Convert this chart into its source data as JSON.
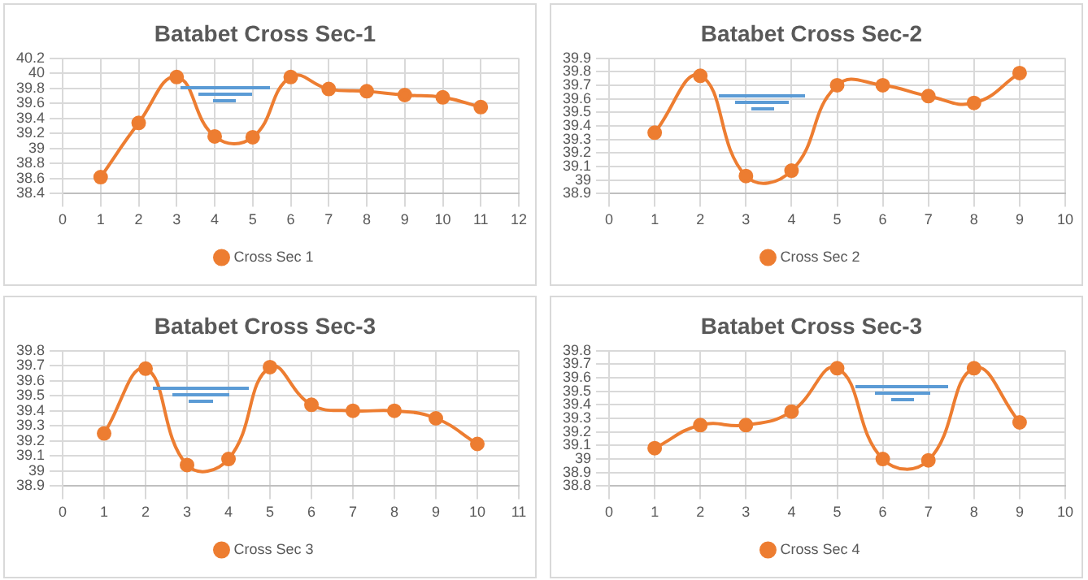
{
  "chart_data": [
    {
      "type": "line",
      "title": "Batabet Cross Sec-1",
      "x": [
        1,
        2,
        3,
        4,
        5,
        6,
        7,
        8,
        9,
        10,
        11
      ],
      "series": [
        {
          "name": "Cross Sec 1",
          "color": "#ed7d31",
          "values": [
            38.62,
            39.34,
            39.95,
            39.16,
            39.15,
            39.95,
            39.79,
            39.76,
            39.71,
            39.68,
            39.55
          ]
        }
      ],
      "xlim": [
        0,
        12
      ],
      "xticks": [
        0,
        1,
        2,
        3,
        4,
        5,
        6,
        7,
        8,
        9,
        10,
        11,
        12
      ],
      "ylim": [
        38.4,
        40.2
      ],
      "yticks": [
        38.4,
        38.6,
        38.8,
        39,
        39.2,
        39.4,
        39.6,
        39.8,
        40,
        40.2
      ],
      "grid": true,
      "legend": "bottom",
      "marker": "circle"
    },
    {
      "type": "line",
      "title": "Batabet Cross Sec-2",
      "x": [
        1,
        2,
        3,
        4,
        5,
        6,
        7,
        8,
        9
      ],
      "series": [
        {
          "name": "Cross Sec 2",
          "color": "#ed7d31",
          "values": [
            39.35,
            39.77,
            39.03,
            39.07,
            39.7,
            39.7,
            39.62,
            39.57,
            39.79
          ]
        }
      ],
      "xlim": [
        0,
        10
      ],
      "xticks": [
        0,
        1,
        2,
        3,
        4,
        5,
        6,
        7,
        8,
        9,
        10
      ],
      "ylim": [
        38.9,
        39.9
      ],
      "yticks": [
        38.9,
        39,
        39.1,
        39.2,
        39.3,
        39.4,
        39.5,
        39.6,
        39.7,
        39.8,
        39.9
      ],
      "grid": true,
      "legend": "bottom",
      "marker": "circle"
    },
    {
      "type": "line",
      "title": "Batabet Cross Sec-3",
      "x": [
        1,
        2,
        3,
        4,
        5,
        6,
        7,
        8,
        9,
        10
      ],
      "series": [
        {
          "name": "Cross Sec 3",
          "color": "#ed7d31",
          "values": [
            39.25,
            39.68,
            39.04,
            39.08,
            39.69,
            39.44,
            39.4,
            39.4,
            39.35,
            39.18
          ]
        }
      ],
      "xlim": [
        0,
        11
      ],
      "xticks": [
        0,
        1,
        2,
        3,
        4,
        5,
        6,
        7,
        8,
        9,
        10,
        11
      ],
      "ylim": [
        38.9,
        39.8
      ],
      "yticks": [
        38.9,
        39,
        39.1,
        39.2,
        39.3,
        39.4,
        39.5,
        39.6,
        39.7,
        39.8
      ],
      "grid": true,
      "legend": "bottom",
      "marker": "circle"
    },
    {
      "type": "line",
      "title": "Batabet Cross Sec-3",
      "x": [
        1,
        2,
        3,
        4,
        5,
        6,
        7,
        8,
        9
      ],
      "series": [
        {
          "name": "Cross Sec 4",
          "color": "#ed7d31",
          "values": [
            39.08,
            39.25,
            39.25,
            39.35,
            39.67,
            39,
            38.99,
            39.67,
            39.27
          ]
        }
      ],
      "xlim": [
        0,
        10
      ],
      "xticks": [
        0,
        1,
        2,
        3,
        4,
        5,
        6,
        7,
        8,
        9,
        10
      ],
      "ylim": [
        38.8,
        39.8
      ],
      "yticks": [
        38.8,
        38.9,
        39,
        39.1,
        39.2,
        39.3,
        39.4,
        39.5,
        39.6,
        39.7,
        39.8
      ],
      "grid": true,
      "legend": "bottom",
      "marker": "circle"
    }
  ]
}
